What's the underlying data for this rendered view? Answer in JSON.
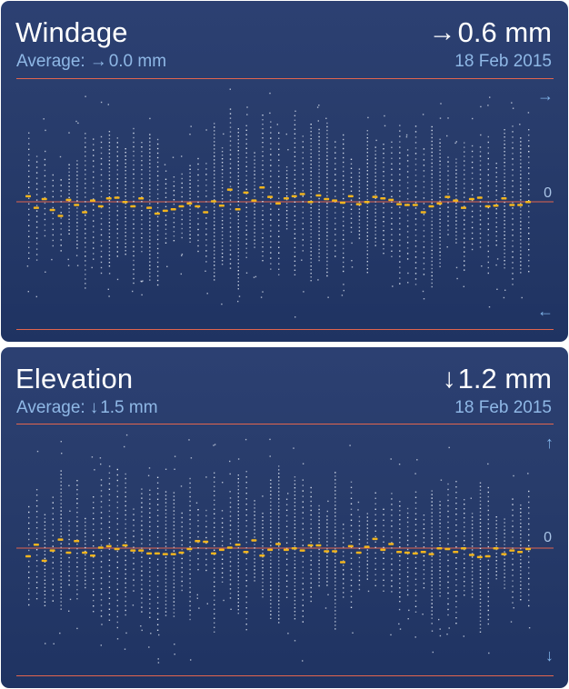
{
  "windage": {
    "title": "Windage",
    "current_arrow": "→",
    "current_value": "0.6 mm",
    "average_label": "Average:",
    "average_arrow": "→",
    "average_value": "0.0 mm",
    "date": "18 Feb 2015",
    "zero_label": "0",
    "top_icon": "arrow-right-icon",
    "bottom_icon": "arrow-left-icon",
    "top_glyph": "→",
    "bottom_glyph": "←"
  },
  "elevation": {
    "title": "Elevation",
    "current_arrow": "↓",
    "current_value": "1.2 mm",
    "average_label": "Average:",
    "average_arrow": "↓",
    "average_value": "1.5 mm",
    "date": "18 Feb 2015",
    "zero_label": "0",
    "top_icon": "arrow-up-icon",
    "bottom_icon": "arrow-down-icon",
    "top_glyph": "↑",
    "bottom_glyph": "↓"
  },
  "colors": {
    "card_background": "#283c6b",
    "accent_line": "#e2654e",
    "mean_marker": "#f2b51e",
    "dots": "#e8eef8",
    "secondary_text": "#8fb8e6"
  },
  "chart_data": [
    {
      "type": "scatter",
      "title": "Windage",
      "baseline": 0,
      "mean_offsets": [
        0.8,
        -0.8,
        0.4,
        -1.1,
        -1.9,
        0.3,
        -0.4,
        -1.4,
        0.2,
        -0.6,
        0.5,
        0.6,
        0.0,
        -0.6,
        0.5,
        -0.8,
        -1.6,
        -1.2,
        -1.0,
        -0.6,
        -0.2,
        -0.6,
        -1.4,
        0.1,
        -0.5,
        1.7,
        -1.0,
        1.3,
        0.2,
        2.0,
        0.7,
        -0.2,
        0.5,
        0.8,
        1.1,
        0.0,
        0.9,
        0.4,
        0.2,
        -0.1,
        0.8,
        -0.3,
        0.0,
        0.7,
        0.5,
        0.3,
        -0.3,
        -0.4,
        -0.4,
        -1.4,
        -0.6,
        -0.2,
        0.7,
        0.2,
        -0.8,
        0.4,
        0.6,
        -0.6,
        -0.5,
        0.5,
        -0.4,
        -0.4,
        0.0
      ]
    },
    {
      "type": "scatter",
      "title": "Elevation",
      "baseline": 0,
      "mean_offsets": [
        -1.1,
        0.5,
        -1.7,
        -0.3,
        1.2,
        -0.6,
        1.0,
        -0.6,
        -1.0,
        0.1,
        0.3,
        -0.1,
        0.4,
        -0.3,
        -0.3,
        -0.7,
        -0.7,
        -0.8,
        -0.8,
        -0.6,
        -0.1,
        1.0,
        0.9,
        -0.7,
        -0.2,
        0.1,
        0.5,
        -0.5,
        1.1,
        -1.0,
        -0.2,
        0.6,
        -0.2,
        0.0,
        -0.3,
        0.4,
        0.4,
        -0.4,
        -0.4,
        -1.9,
        0.3,
        -0.6,
        0.2,
        1.3,
        -0.2,
        0.6,
        -0.5,
        -0.6,
        -0.7,
        -0.5,
        -0.8,
        0.0,
        -0.1,
        -0.5,
        0.0,
        -0.9,
        -1.2,
        -1.1,
        0.0,
        -0.8,
        -0.3,
        -0.5,
        -0.1
      ]
    }
  ]
}
